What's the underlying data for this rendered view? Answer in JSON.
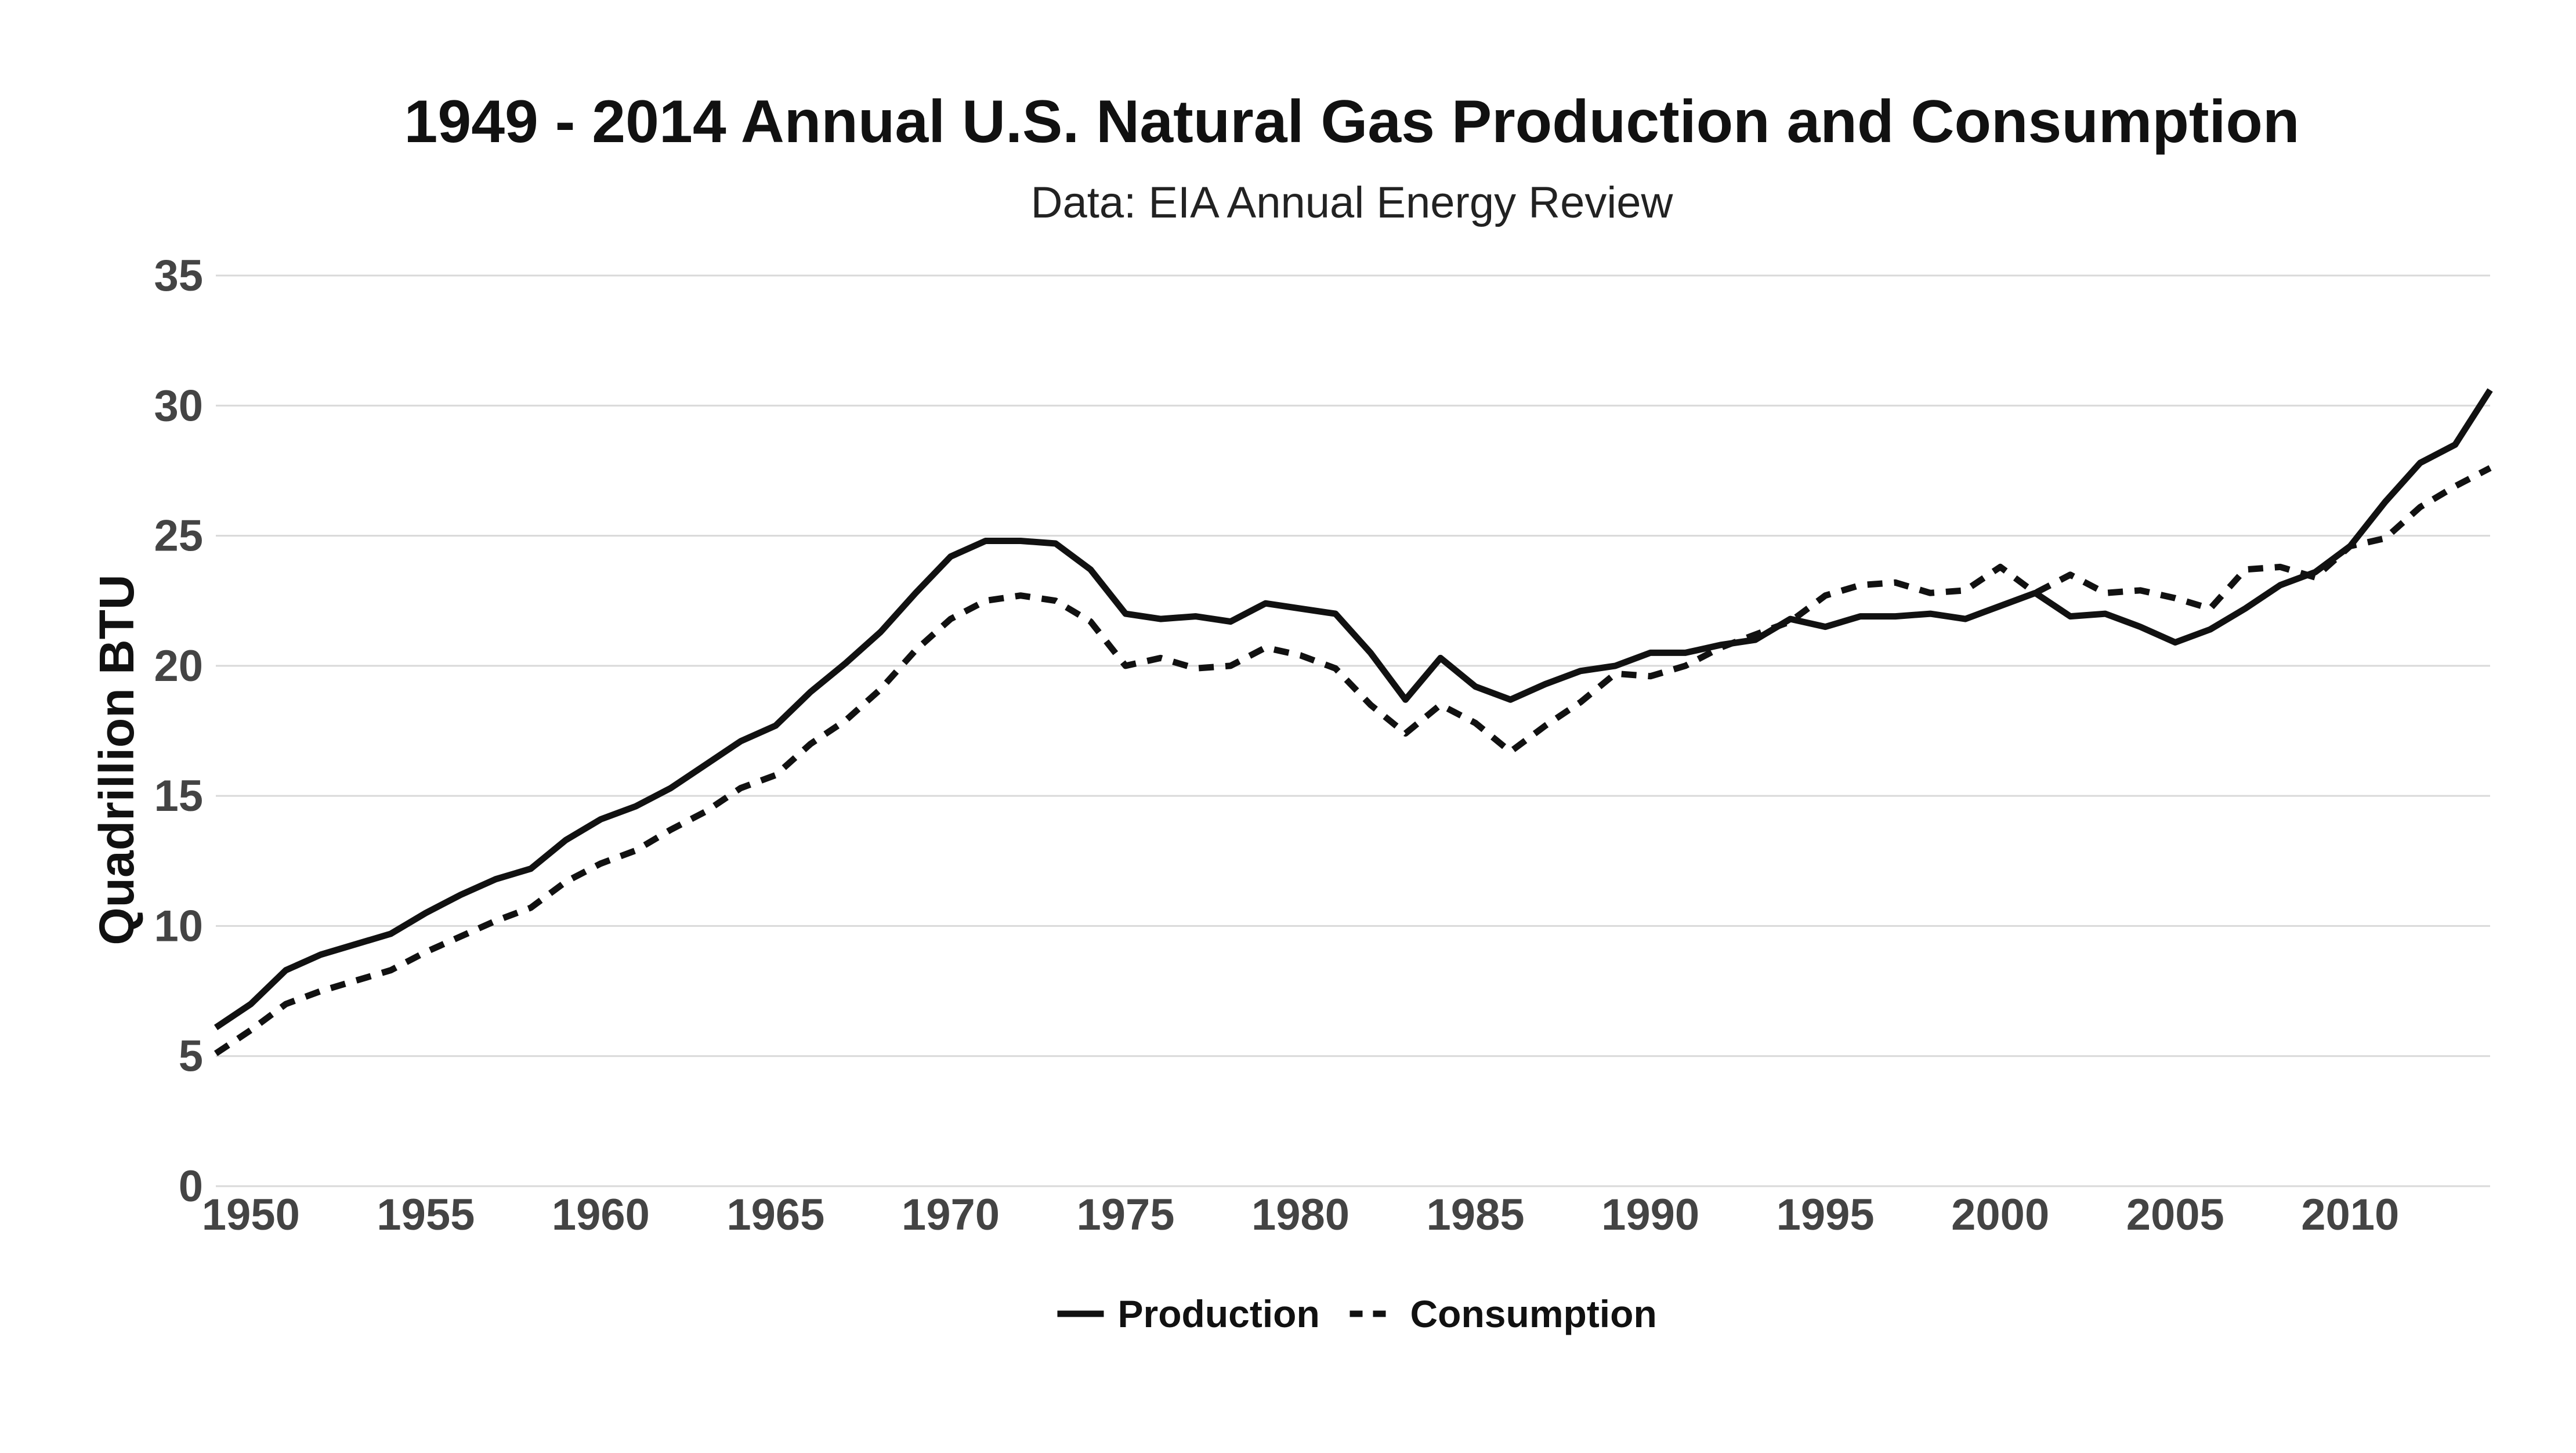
{
  "chart_data": {
    "type": "line",
    "title": "1949 - 2014 Annual U.S. Natural Gas Production and Consumption",
    "subtitle": "Data: EIA Annual Energy Review",
    "ylabel": "Quadrillion BTU",
    "xlabel": "",
    "xlim": [
      1949,
      2014
    ],
    "ylim": [
      0,
      35
    ],
    "x_ticks": [
      1950,
      1955,
      1960,
      1965,
      1970,
      1975,
      1980,
      1985,
      1990,
      1995,
      2000,
      2005,
      2010
    ],
    "y_ticks": [
      0,
      5,
      10,
      15,
      20,
      25,
      30,
      35
    ],
    "grid": true,
    "legend_position": "bottom",
    "x": [
      1949,
      1950,
      1951,
      1952,
      1953,
      1954,
      1955,
      1956,
      1957,
      1958,
      1959,
      1960,
      1961,
      1962,
      1963,
      1964,
      1965,
      1966,
      1967,
      1968,
      1969,
      1970,
      1971,
      1972,
      1973,
      1974,
      1975,
      1976,
      1977,
      1978,
      1979,
      1980,
      1981,
      1982,
      1983,
      1984,
      1985,
      1986,
      1987,
      1988,
      1989,
      1990,
      1991,
      1992,
      1993,
      1994,
      1995,
      1996,
      1997,
      1998,
      1999,
      2000,
      2001,
      2002,
      2003,
      2004,
      2005,
      2006,
      2007,
      2008,
      2009,
      2010,
      2011,
      2012,
      2013,
      2014
    ],
    "series": [
      {
        "name": "Production",
        "color": "#111111",
        "dash": "solid",
        "values": [
          6.1,
          7.0,
          8.3,
          8.9,
          9.3,
          9.7,
          10.5,
          11.2,
          11.8,
          12.2,
          13.3,
          14.1,
          14.6,
          15.3,
          16.2,
          17.1,
          17.7,
          19.0,
          20.1,
          21.3,
          22.8,
          24.2,
          24.8,
          24.8,
          24.7,
          23.7,
          22.0,
          21.8,
          21.9,
          21.7,
          22.4,
          22.2,
          22.0,
          20.5,
          18.7,
          20.3,
          19.2,
          18.7,
          19.3,
          19.8,
          20.0,
          20.5,
          20.5,
          20.8,
          21.0,
          21.8,
          21.5,
          21.9,
          21.9,
          22.0,
          21.8,
          22.3,
          22.8,
          21.9,
          22.0,
          21.5,
          20.9,
          21.4,
          22.2,
          23.1,
          23.6,
          24.6,
          26.3,
          27.8,
          28.5,
          30.6
        ]
      },
      {
        "name": "Consumption",
        "color": "#111111",
        "dash": "dashed",
        "values": [
          5.1,
          6.0,
          7.0,
          7.5,
          7.9,
          8.3,
          9.0,
          9.6,
          10.2,
          10.7,
          11.7,
          12.4,
          12.9,
          13.7,
          14.4,
          15.3,
          15.8,
          17.0,
          17.9,
          19.1,
          20.6,
          21.8,
          22.5,
          22.7,
          22.5,
          21.7,
          20.0,
          20.3,
          19.9,
          20.0,
          20.7,
          20.4,
          19.9,
          18.5,
          17.4,
          18.5,
          17.8,
          16.7,
          17.7,
          18.6,
          19.7,
          19.6,
          20.0,
          20.7,
          21.2,
          21.7,
          22.7,
          23.1,
          23.2,
          22.8,
          22.9,
          23.8,
          22.8,
          23.5,
          22.8,
          22.9,
          22.6,
          22.2,
          23.7,
          23.8,
          23.4,
          24.6,
          24.9,
          26.1,
          26.9,
          27.6
        ]
      }
    ]
  }
}
